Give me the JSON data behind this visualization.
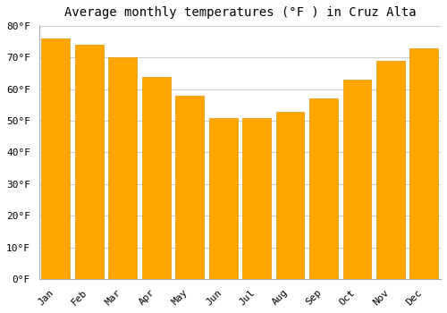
{
  "title": "Average monthly temperatures (°F ) in Cruz Alta",
  "months": [
    "Jan",
    "Feb",
    "Mar",
    "Apr",
    "May",
    "Jun",
    "Jul",
    "Aug",
    "Sep",
    "Oct",
    "Nov",
    "Dec"
  ],
  "values": [
    76,
    74,
    70,
    64,
    58,
    51,
    51,
    53,
    57,
    63,
    69,
    73
  ],
  "bar_color": "#FFA500",
  "bar_edge_color": "#E8960A",
  "ylim": [
    0,
    80
  ],
  "yticks": [
    0,
    10,
    20,
    30,
    40,
    50,
    60,
    70,
    80
  ],
  "background_color": "#ffffff",
  "grid_color": "#d0d0d0",
  "title_fontsize": 10,
  "tick_fontsize": 8,
  "font_family": "monospace",
  "bar_width": 0.85
}
